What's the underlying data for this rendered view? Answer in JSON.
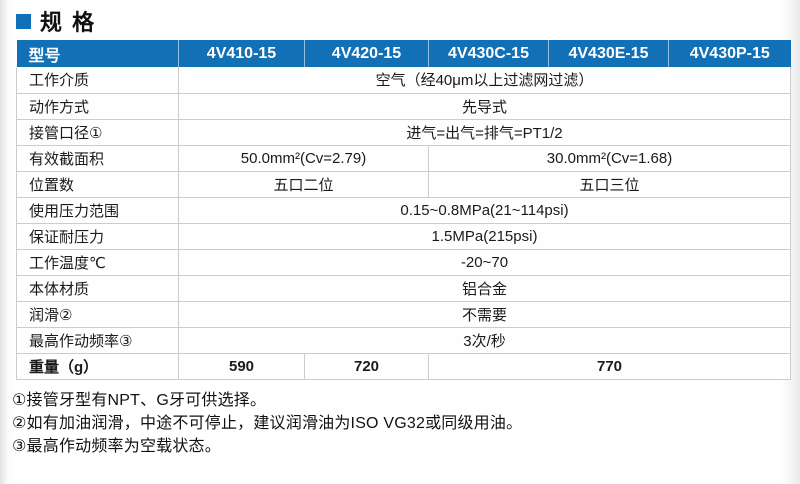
{
  "title": {
    "text": "规 格",
    "square_color": "#1271b6"
  },
  "colors": {
    "header_blue": "#1271b6",
    "border_gray": "#cccccc"
  },
  "table": {
    "header": {
      "label": "型号",
      "models": [
        "4V410-15",
        "4V420-15",
        "4V430C-15",
        "4V430E-15",
        "4V430P-15"
      ]
    },
    "rows": [
      {
        "label": "工作介质",
        "cells": [
          {
            "text": "空气（经40μm以上过滤网过滤）",
            "span": 5
          }
        ]
      },
      {
        "label": "动作方式",
        "cells": [
          {
            "text": "先导式",
            "span": 5
          }
        ]
      },
      {
        "label": "接管口径①",
        "cells": [
          {
            "text": "进气=出气=排气=PT1/2",
            "span": 5
          }
        ]
      },
      {
        "label": "有效截面积",
        "cells": [
          {
            "text": "50.0mm²(Cv=2.79)",
            "span": 2
          },
          {
            "text": "30.0mm²(Cv=1.68)",
            "span": 3
          }
        ]
      },
      {
        "label": "位置数",
        "cells": [
          {
            "text": "五口二位",
            "span": 2
          },
          {
            "text": "五口三位",
            "span": 3
          }
        ]
      },
      {
        "label": "使用压力范围",
        "cells": [
          {
            "text": "0.15~0.8MPa(21~114psi)",
            "span": 5
          }
        ]
      },
      {
        "label": "保证耐压力",
        "cells": [
          {
            "text": "1.5MPa(215psi)",
            "span": 5
          }
        ]
      },
      {
        "label": "工作温度℃",
        "cells": [
          {
            "text": "-20~70",
            "span": 5
          }
        ]
      },
      {
        "label": "本体材质",
        "cells": [
          {
            "text": "铝合金",
            "span": 5
          }
        ]
      },
      {
        "label": "润滑②",
        "cells": [
          {
            "text": "不需要",
            "span": 5
          }
        ]
      },
      {
        "label": "最高作动频率③",
        "cells": [
          {
            "text": "3次/秒",
            "span": 5
          }
        ]
      },
      {
        "label": "重量（g）",
        "bold": true,
        "cells": [
          {
            "text": "590",
            "span": 1
          },
          {
            "text": "720",
            "span": 1
          },
          {
            "text": "770",
            "span": 3
          }
        ]
      }
    ]
  },
  "footnotes": [
    "①接管牙型有NPT、G牙可供选择。",
    "②如有加油润滑，中途不可停止，建议润滑油为ISO VG32或同级用油。",
    "③最高作动频率为空载状态。"
  ]
}
